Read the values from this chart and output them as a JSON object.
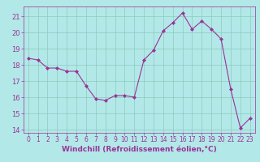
{
  "x": [
    0,
    1,
    2,
    3,
    4,
    5,
    6,
    7,
    8,
    9,
    10,
    11,
    12,
    13,
    14,
    15,
    16,
    17,
    18,
    19,
    20,
    21,
    22,
    23
  ],
  "y": [
    18.4,
    18.3,
    17.8,
    17.8,
    17.6,
    17.6,
    16.7,
    15.9,
    15.8,
    16.1,
    16.1,
    16.0,
    18.3,
    18.9,
    20.1,
    20.6,
    21.2,
    20.2,
    20.7,
    20.2,
    19.6,
    16.5,
    14.1,
    14.7
  ],
  "line_color": "#993399",
  "marker": "D",
  "marker_size": 2,
  "bg_color": "#b3e8e8",
  "grid_color": "#88ccbb",
  "xlabel": "Windchill (Refroidissement éolien,°C)",
  "xlabel_color": "#993399",
  "tick_color": "#993399",
  "ylim": [
    13.8,
    21.6
  ],
  "xlim": [
    -0.5,
    23.5
  ],
  "yticks": [
    14,
    15,
    16,
    17,
    18,
    19,
    20,
    21
  ],
  "xticks": [
    0,
    1,
    2,
    3,
    4,
    5,
    6,
    7,
    8,
    9,
    10,
    11,
    12,
    13,
    14,
    15,
    16,
    17,
    18,
    19,
    20,
    21,
    22,
    23
  ],
  "tick_fontsize": 6,
  "xlabel_fontsize": 6.5
}
